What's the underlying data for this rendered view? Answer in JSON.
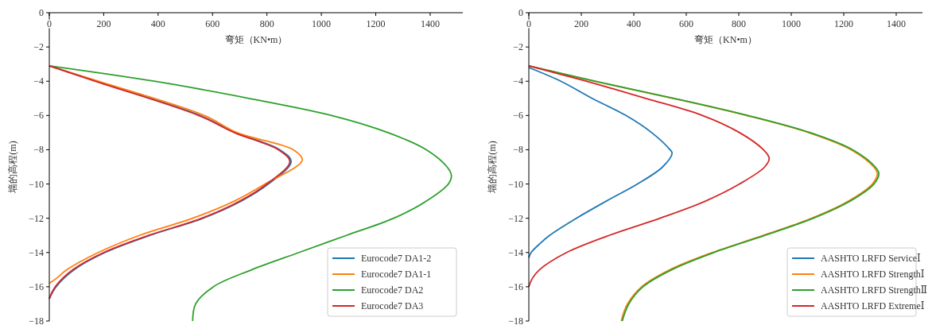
{
  "chart_data": [
    {
      "type": "line",
      "xlabel": "弯矩（KN•m）",
      "ylabel": "墙的高程(m)",
      "xlim": [
        0,
        1520
      ],
      "ylim": [
        -18,
        0
      ],
      "xticks": [
        0,
        200,
        400,
        600,
        800,
        1000,
        1200,
        1400
      ],
      "yticks": [
        0,
        -2,
        -4,
        -6,
        -8,
        -10,
        -12,
        -14,
        -16,
        -18
      ],
      "legend": "bottom right",
      "series": [
        {
          "name": "Eurocode7 DA1-2",
          "color": "#1f77b4",
          "x": [
            0,
            173,
            554,
            685,
            847,
            889,
            805,
            705,
            565,
            370,
            205,
            92,
            25,
            0
          ],
          "values": [
            -3.1,
            -4,
            -6,
            -7,
            -8,
            -8.7,
            -10,
            -11,
            -12,
            -13,
            -14,
            -15,
            -16,
            -16.7
          ]
        },
        {
          "name": "Eurocode7 DA1-1",
          "color": "#ff7f0e",
          "x": [
            0,
            180,
            570,
            690,
            897,
            930,
            793,
            680,
            527,
            331,
            180,
            65,
            27,
            0
          ],
          "values": [
            -3.1,
            -4,
            -6,
            -7,
            -8,
            -8.6,
            -10,
            -11,
            -12,
            -13,
            -14,
            -15,
            -15.5,
            -15.8
          ]
        },
        {
          "name": "Eurocode7 DA2",
          "color": "#2ca02c",
          "x": [
            0,
            386,
            734,
            1038,
            1245,
            1386,
            1462,
            1478,
            1467,
            1386,
            1266,
            1092,
            918,
            745,
            603,
            538,
            527
          ],
          "values": [
            -3.1,
            -4,
            -5,
            -6,
            -7,
            -8,
            -9,
            -9.5,
            -10,
            -11,
            -12,
            -13,
            -14,
            -15,
            -16,
            -17,
            -18
          ]
        },
        {
          "name": "Eurocode7 DA3",
          "color": "#d62728",
          "x": [
            0,
            168,
            549,
            680,
            842,
            884,
            800,
            700,
            560,
            365,
            200,
            87,
            22,
            0
          ],
          "values": [
            -3.1,
            -4,
            -6,
            -7,
            -8,
            -8.7,
            -10,
            -11,
            -12,
            -13,
            -14,
            -15,
            -16,
            -16.7
          ]
        }
      ]
    },
    {
      "type": "line",
      "xlabel": "弯矩（KN•m）",
      "ylabel": "墙的高程(m)",
      "xlim": [
        0,
        1500
      ],
      "ylim": [
        -18,
        0
      ],
      "xticks": [
        0,
        200,
        400,
        600,
        800,
        1000,
        1200,
        1400
      ],
      "yticks": [
        0,
        -2,
        -4,
        -6,
        -8,
        -10,
        -12,
        -14,
        -16,
        -18
      ],
      "legend": "bottom right",
      "series": [
        {
          "name": "AASHTO LRFD ServiceⅠ",
          "color": "#1f77b4",
          "x": [
            0,
            122,
            241,
            370,
            468,
            538,
            546,
            510,
            414,
            295,
            181,
            79,
            41,
            9,
            0
          ],
          "values": [
            -3.2,
            -4,
            -5,
            -6,
            -7,
            -8,
            -8.2,
            -9,
            -10,
            -11,
            -12,
            -13,
            -13.5,
            -14,
            -14.3
          ]
        },
        {
          "name": "AASHTO LRFD StrengthⅠ",
          "color": "#ff7f0e",
          "x": [
            0,
            250,
            550,
            830,
            1066,
            1228,
            1314,
            1328,
            1309,
            1218,
            1078,
            894,
            699,
            538,
            430,
            376,
            352
          ],
          "values": [
            -3.1,
            -4,
            -5,
            -6,
            -7,
            -8,
            -9,
            -9.4,
            -10,
            -11,
            -12,
            -13,
            -14,
            -15,
            -16,
            -17,
            -18
          ]
        },
        {
          "name": "AASHTO LRFD StrengthⅡ",
          "color": "#2ca02c",
          "x": [
            0,
            252,
            554,
            835,
            1072,
            1234,
            1320,
            1334,
            1315,
            1224,
            1084,
            900,
            705,
            545,
            435,
            381,
            356
          ],
          "values": [
            -3.1,
            -4,
            -5,
            -6,
            -7,
            -8,
            -9,
            -9.4,
            -10,
            -11,
            -12,
            -13,
            -14,
            -15,
            -16,
            -17,
            -18
          ]
        },
        {
          "name": "AASHTO LRFD ExtremeⅠ",
          "color": "#d62728",
          "x": [
            0,
            219,
            446,
            662,
            803,
            894,
            916,
            899,
            803,
            673,
            500,
            306,
            144,
            41,
            14,
            0
          ],
          "values": [
            -3.1,
            -4,
            -5,
            -6,
            -7,
            -8,
            -8.5,
            -9,
            -10,
            -11,
            -12,
            -13,
            -14,
            -15,
            -15.5,
            -16
          ]
        }
      ]
    }
  ]
}
